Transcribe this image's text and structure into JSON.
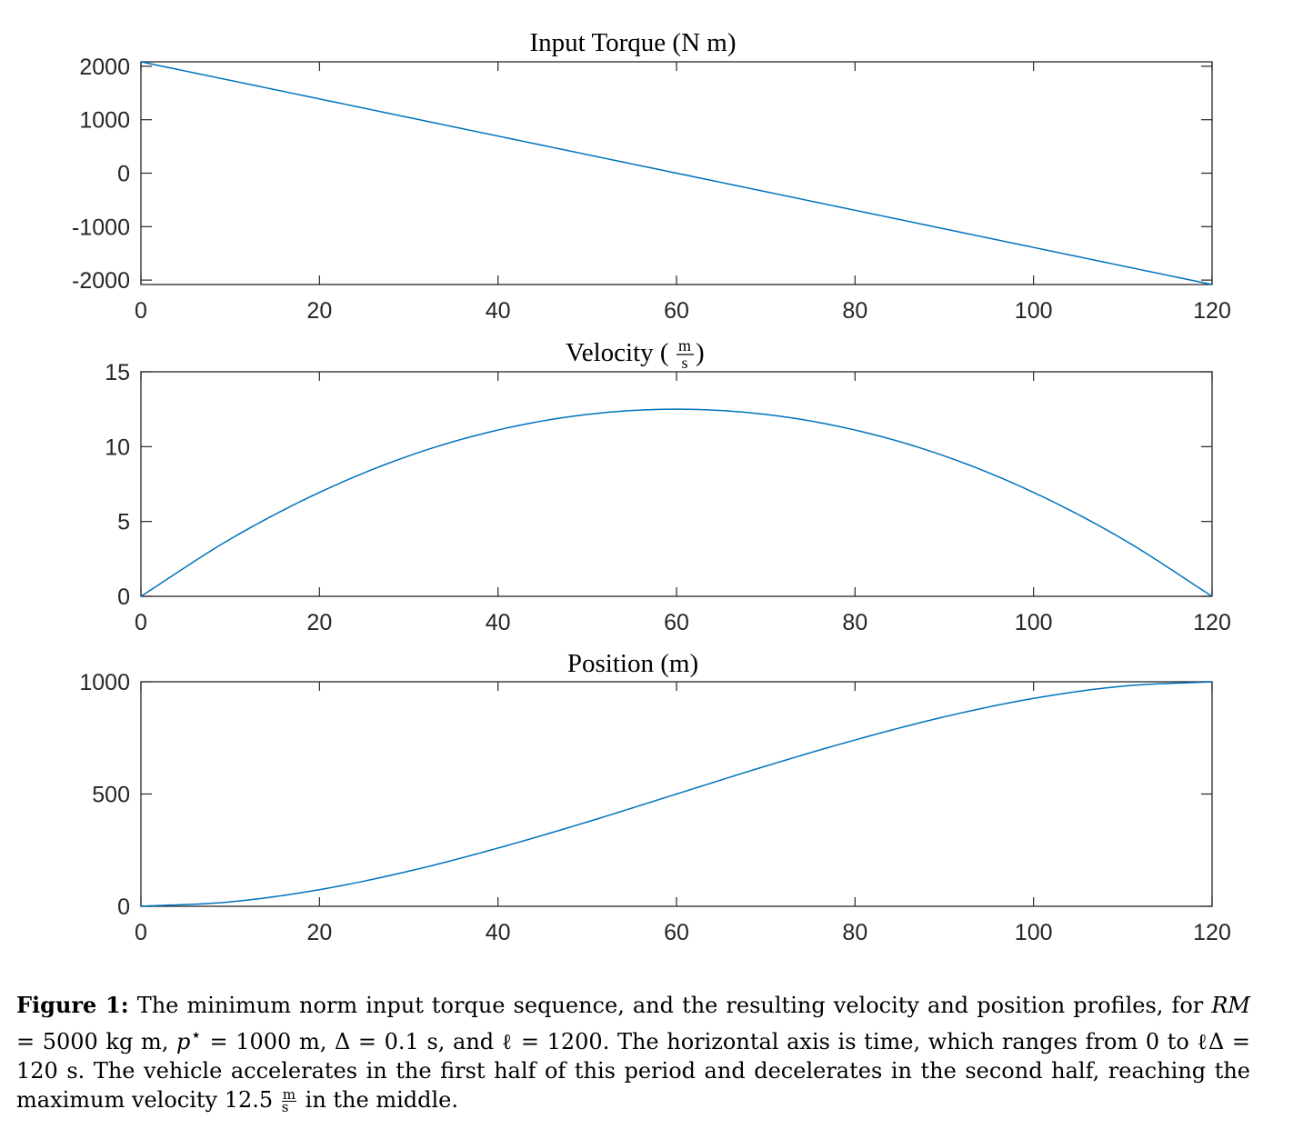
{
  "chart_data": [
    {
      "type": "line",
      "title": "Input Torque (N m)",
      "xlabel": "",
      "ylabel": "",
      "xlim": [
        0,
        120
      ],
      "ylim": [
        -2083,
        2083
      ],
      "xticks": [
        "0",
        "20",
        "40",
        "60",
        "80",
        "100",
        "120"
      ],
      "yticks": [
        "-2000",
        "-1000",
        "0",
        "1000",
        "2000"
      ],
      "ytick_values": [
        -2000,
        -1000,
        0,
        1000,
        2000
      ],
      "grid": false,
      "line_color": "#0072bd",
      "series": [
        {
          "x": [
            0,
            20,
            40,
            60,
            80,
            100,
            120
          ],
          "y": [
            2083,
            1389,
            694,
            0,
            -694,
            -1389,
            -2083
          ]
        }
      ]
    },
    {
      "type": "line",
      "title": "Velocity (m/s)",
      "xlabel": "",
      "ylabel": "",
      "xlim": [
        0,
        120
      ],
      "ylim": [
        0,
        15
      ],
      "xticks": [
        "0",
        "20",
        "40",
        "60",
        "80",
        "100",
        "120"
      ],
      "yticks": [
        "0",
        "5",
        "10",
        "15"
      ],
      "ytick_values": [
        0,
        5,
        10,
        15
      ],
      "grid": false,
      "line_color": "#0072bd",
      "series": [
        {
          "x": [
            0,
            10,
            20,
            30,
            40,
            50,
            60,
            70,
            80,
            90,
            100,
            110,
            120
          ],
          "y": [
            0,
            3.82,
            6.94,
            9.38,
            11.11,
            12.15,
            12.5,
            12.15,
            11.11,
            9.38,
            6.94,
            3.82,
            0
          ]
        }
      ]
    },
    {
      "type": "line",
      "title": "Position (m)",
      "xlabel": "",
      "ylabel": "",
      "xlim": [
        0,
        120
      ],
      "ylim": [
        0,
        1000
      ],
      "xticks": [
        "0",
        "20",
        "40",
        "60",
        "80",
        "100",
        "120"
      ],
      "yticks": [
        "0",
        "500",
        "1000"
      ],
      "ytick_values": [
        0,
        500,
        1000
      ],
      "grid": false,
      "line_color": "#0072bd",
      "series": [
        {
          "x": [
            0,
            10,
            20,
            30,
            40,
            50,
            60,
            70,
            80,
            90,
            100,
            110,
            120
          ],
          "y": [
            0,
            19.7,
            74.1,
            156.3,
            259.3,
            375.6,
            500,
            624.4,
            740.7,
            843.8,
            925.9,
            980.3,
            1000
          ]
        }
      ]
    }
  ],
  "panel_titles": {
    "torque": "Input Torque (N m)",
    "velocity_pre": "Velocity (",
    "velocity_num": "m",
    "velocity_den": "s",
    "velocity_post": ")",
    "position": "Position (m)"
  },
  "caption": {
    "label": "Figure 1:",
    "p1": " The minimum norm input torque sequence, and the resulting velocity and position profiles, for ",
    "rm": "RM",
    "p2": " = 5000 kg m, ",
    "pstar": "p",
    "star": "⋆",
    "p3": " = 1000 m, Δ = 0.1 s, and ℓ = 1200. The horizontal axis is time, which ranges from 0 to ℓΔ = 120 s. The vehicle accelerates in the first half of this period and decelerates in the second half, reaching the maximum velocity 12.5 ",
    "unit_num": "m",
    "unit_den": "s",
    "p4": " in the middle."
  }
}
